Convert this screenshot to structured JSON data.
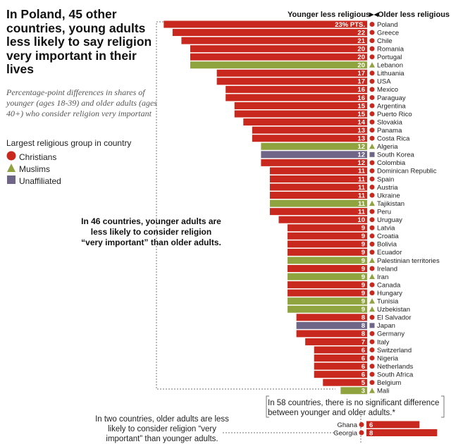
{
  "title": "In Poland, 45 other countries, young adults less likely to say religion very important in their lives",
  "subtitle": "Percentage-point differences in shares of younger (ages 18-39) and older adults (ages 40+) who consider religion very important",
  "legend": {
    "title": "Largest religious group in country",
    "items": [
      {
        "label": "Christians",
        "color": "#c8281d",
        "shape": "circle"
      },
      {
        "label": "Muslims",
        "color": "#8fa33e",
        "shape": "triangle"
      },
      {
        "label": "Unaffiliated",
        "color": "#6e6587",
        "shape": "square"
      }
    ]
  },
  "header": {
    "left": "Younger less religious",
    "right": "Older less religious"
  },
  "annotations": {
    "forty_six": "In 46 countries, younger adults are less likely to consider religion “very important” than older adults.",
    "fifty_eight": "In 58 countries, there is no significant difference between younger and older adults.*",
    "two": "In two countries, older adults are less likely to consider religion “very important” than younger adults."
  },
  "chart_data": [
    {
      "type": "bar",
      "title": "",
      "label_suffix_first": "% PTS.",
      "categories": [
        "Poland",
        "Greece",
        "Chile",
        "Romania",
        "Portugal",
        "Lebanon",
        "Lithuania",
        "USA",
        "Mexico",
        "Paraguay",
        "Argentina",
        "Puerto Rico",
        "Slovakia",
        "Panama",
        "Costa Rica",
        "Algeria",
        "South Korea",
        "Colombia",
        "Dominican Republic",
        "Spain",
        "Austria",
        "Ukraine",
        "Tajikistan",
        "Peru",
        "Uruguay",
        "Latvia",
        "Croatia",
        "Bolivia",
        "Ecuador",
        "Palestinian territories",
        "Ireland",
        "Iran",
        "Canada",
        "Hungary",
        "Tunisia",
        "Uzbekistan",
        "El Salvador",
        "Japan",
        "Germany",
        "Italy",
        "Switzerland",
        "Nigeria",
        "Netherlands",
        "South Africa",
        "Belgium",
        "Mali"
      ],
      "values": [
        23,
        22,
        21,
        20,
        20,
        20,
        17,
        17,
        16,
        16,
        15,
        15,
        14,
        13,
        13,
        12,
        12,
        12,
        11,
        11,
        11,
        11,
        11,
        11,
        10,
        9,
        9,
        9,
        9,
        9,
        9,
        9,
        9,
        9,
        9,
        9,
        8,
        8,
        8,
        7,
        6,
        6,
        6,
        6,
        5,
        3
      ],
      "groups": [
        "Christians",
        "Christians",
        "Christians",
        "Christians",
        "Christians",
        "Muslims",
        "Christians",
        "Christians",
        "Christians",
        "Christians",
        "Christians",
        "Christians",
        "Christians",
        "Christians",
        "Christians",
        "Muslims",
        "Unaffiliated",
        "Christians",
        "Christians",
        "Christians",
        "Christians",
        "Christians",
        "Muslims",
        "Christians",
        "Christians",
        "Christians",
        "Christians",
        "Christians",
        "Christians",
        "Muslims",
        "Christians",
        "Muslims",
        "Christians",
        "Christians",
        "Muslims",
        "Muslims",
        "Christians",
        "Unaffiliated",
        "Christians",
        "Christians",
        "Christians",
        "Christians",
        "Christians",
        "Christians",
        "Christians",
        "Muslims"
      ],
      "direction": "Younger less religious"
    },
    {
      "type": "bar",
      "title": "",
      "categories": [
        "Ghana",
        "Georgia"
      ],
      "values": [
        6,
        8
      ],
      "groups": [
        "Christians",
        "Christians"
      ],
      "direction": "Older less religious"
    }
  ]
}
